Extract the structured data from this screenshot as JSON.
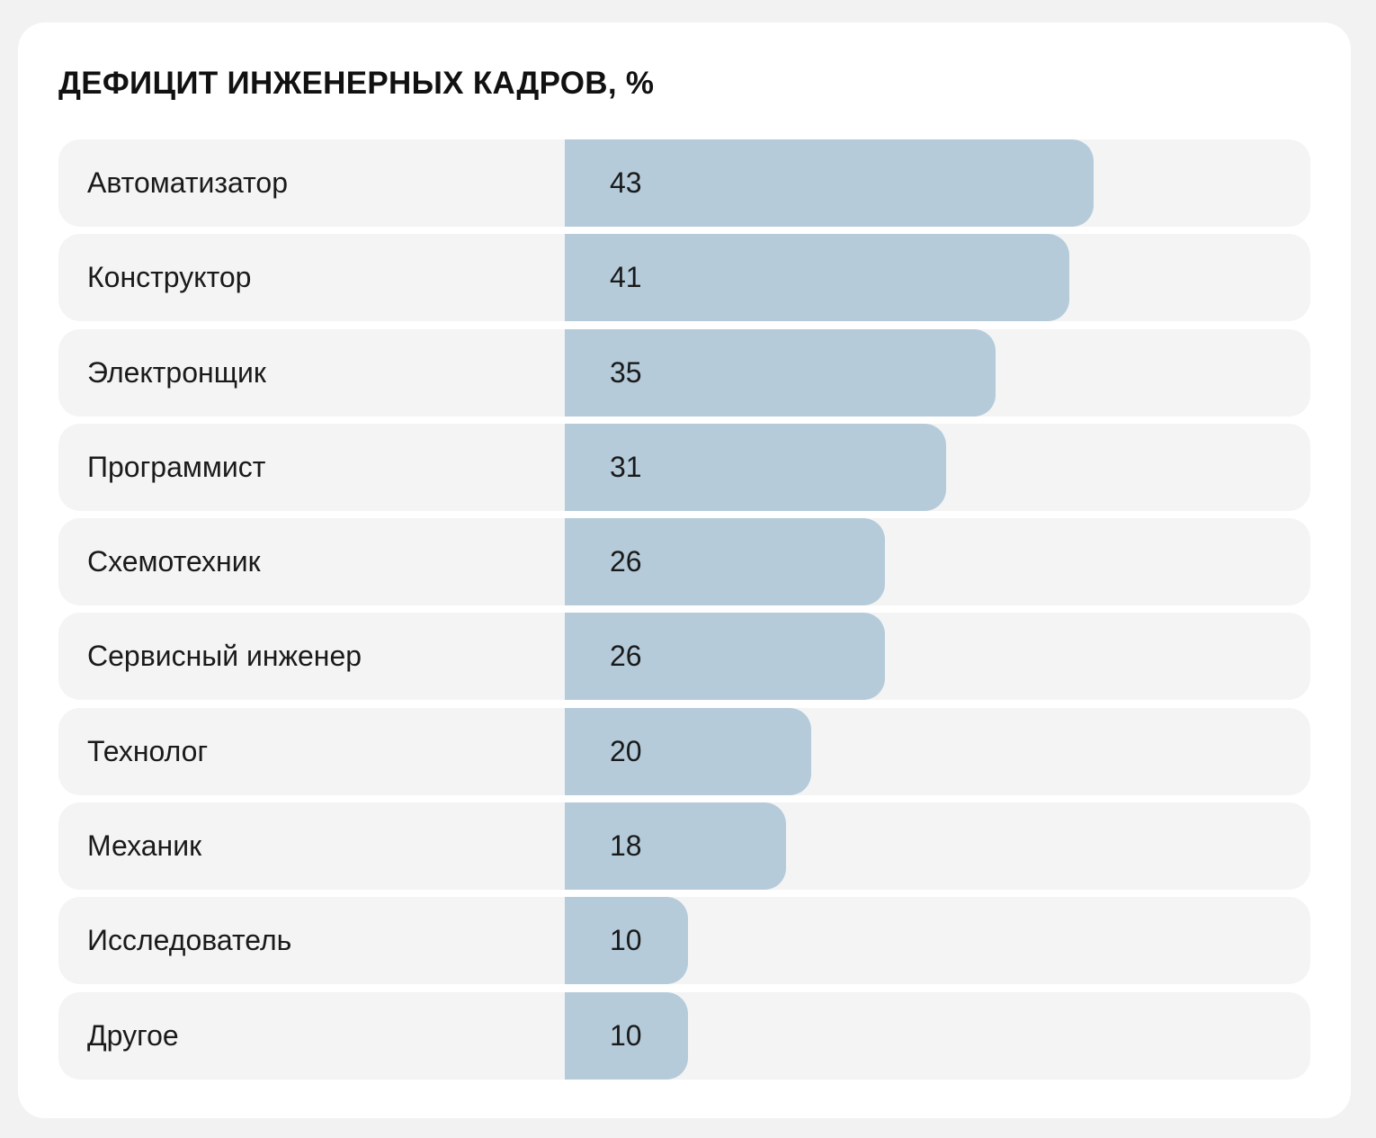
{
  "chart_data": {
    "type": "bar",
    "orientation": "horizontal",
    "title": "ДЕФИЦИТ ИНЖЕНЕРНЫХ КАДРОВ, %",
    "xlabel": "",
    "ylabel": "",
    "xlim": [
      0,
      100
    ],
    "grid": false,
    "categories": [
      "Автоматизатор",
      "Конструктор",
      "Электронщик",
      "Программист",
      "Схемотехник",
      "Сервисный инженер",
      "Технолог",
      "Механик",
      "Исследователь",
      "Другое"
    ],
    "values": [
      43,
      41,
      35,
      31,
      26,
      26,
      20,
      18,
      10,
      10
    ],
    "bar_color": "#b5cbda",
    "track_color": "#f4f4f4"
  }
}
